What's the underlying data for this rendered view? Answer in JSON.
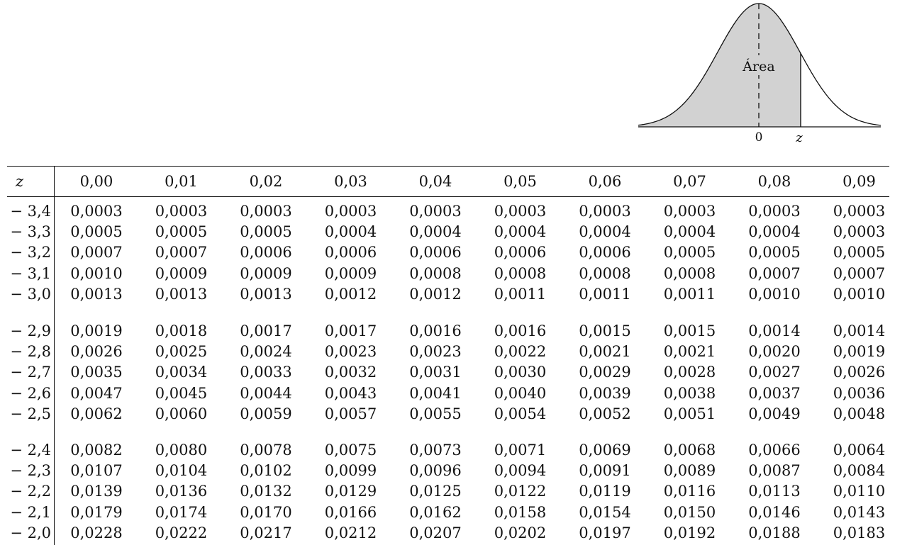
{
  "figure": {
    "area_label": "Área",
    "zero_label": "0",
    "z_label": "z"
  },
  "table": {
    "z_header": "z",
    "columns": [
      "0,00",
      "0,01",
      "0,02",
      "0,03",
      "0,04",
      "0,05",
      "0,06",
      "0,07",
      "0,08",
      "0,09"
    ],
    "groups": [
      {
        "rows": [
          {
            "z": "− 3,4",
            "values": [
              "0,0003",
              "0,0003",
              "0,0003",
              "0,0003",
              "0,0003",
              "0,0003",
              "0,0003",
              "0,0003",
              "0,0003",
              "0,0003"
            ]
          },
          {
            "z": "− 3,3",
            "values": [
              "0,0005",
              "0,0005",
              "0,0005",
              "0,0004",
              "0,0004",
              "0,0004",
              "0,0004",
              "0,0004",
              "0,0004",
              "0,0003"
            ]
          },
          {
            "z": "− 3,2",
            "values": [
              "0,0007",
              "0,0007",
              "0,0006",
              "0,0006",
              "0,0006",
              "0,0006",
              "0,0006",
              "0,0005",
              "0,0005",
              "0,0005"
            ]
          },
          {
            "z": "− 3,1",
            "values": [
              "0,0010",
              "0,0009",
              "0,0009",
              "0,0009",
              "0,0008",
              "0,0008",
              "0,0008",
              "0,0008",
              "0,0007",
              "0,0007"
            ]
          },
          {
            "z": "− 3,0",
            "values": [
              "0,0013",
              "0,0013",
              "0,0013",
              "0,0012",
              "0,0012",
              "0,0011",
              "0,0011",
              "0,0011",
              "0,0010",
              "0,0010"
            ]
          }
        ]
      },
      {
        "rows": [
          {
            "z": "− 2,9",
            "values": [
              "0,0019",
              "0,0018",
              "0,0017",
              "0,0017",
              "0,0016",
              "0,0016",
              "0,0015",
              "0,0015",
              "0,0014",
              "0,0014"
            ]
          },
          {
            "z": "− 2,8",
            "values": [
              "0,0026",
              "0,0025",
              "0,0024",
              "0,0023",
              "0,0023",
              "0,0022",
              "0,0021",
              "0,0021",
              "0,0020",
              "0,0019"
            ]
          },
          {
            "z": "− 2,7",
            "values": [
              "0,0035",
              "0,0034",
              "0,0033",
              "0,0032",
              "0,0031",
              "0,0030",
              "0,0029",
              "0,0028",
              "0,0027",
              "0,0026"
            ]
          },
          {
            "z": "− 2,6",
            "values": [
              "0,0047",
              "0,0045",
              "0,0044",
              "0,0043",
              "0,0041",
              "0,0040",
              "0,0039",
              "0,0038",
              "0,0037",
              "0,0036"
            ]
          },
          {
            "z": "− 2,5",
            "values": [
              "0,0062",
              "0,0060",
              "0,0059",
              "0,0057",
              "0,0055",
              "0,0054",
              "0,0052",
              "0,0051",
              "0,0049",
              "0,0048"
            ]
          }
        ]
      },
      {
        "rows": [
          {
            "z": "− 2,4",
            "values": [
              "0,0082",
              "0,0080",
              "0,0078",
              "0,0075",
              "0,0073",
              "0,0071",
              "0,0069",
              "0,0068",
              "0,0066",
              "0,0064"
            ]
          },
          {
            "z": "− 2,3",
            "values": [
              "0,0107",
              "0,0104",
              "0,0102",
              "0,0099",
              "0,0096",
              "0,0094",
              "0,0091",
              "0,0089",
              "0,0087",
              "0,0084"
            ]
          },
          {
            "z": "− 2,2",
            "values": [
              "0,0139",
              "0,0136",
              "0,0132",
              "0,0129",
              "0,0125",
              "0,0122",
              "0,0119",
              "0,0116",
              "0,0113",
              "0,0110"
            ]
          },
          {
            "z": "− 2,1",
            "values": [
              "0,0179",
              "0,0174",
              "0,0170",
              "0,0166",
              "0,0162",
              "0,0158",
              "0,0154",
              "0,0150",
              "0,0146",
              "0,0143"
            ]
          },
          {
            "z": "− 2,0",
            "values": [
              "0,0228",
              "0,0222",
              "0,0217",
              "0,0212",
              "0,0207",
              "0,0202",
              "0,0197",
              "0,0192",
              "0,0188",
              "0,0183"
            ]
          }
        ]
      }
    ]
  }
}
